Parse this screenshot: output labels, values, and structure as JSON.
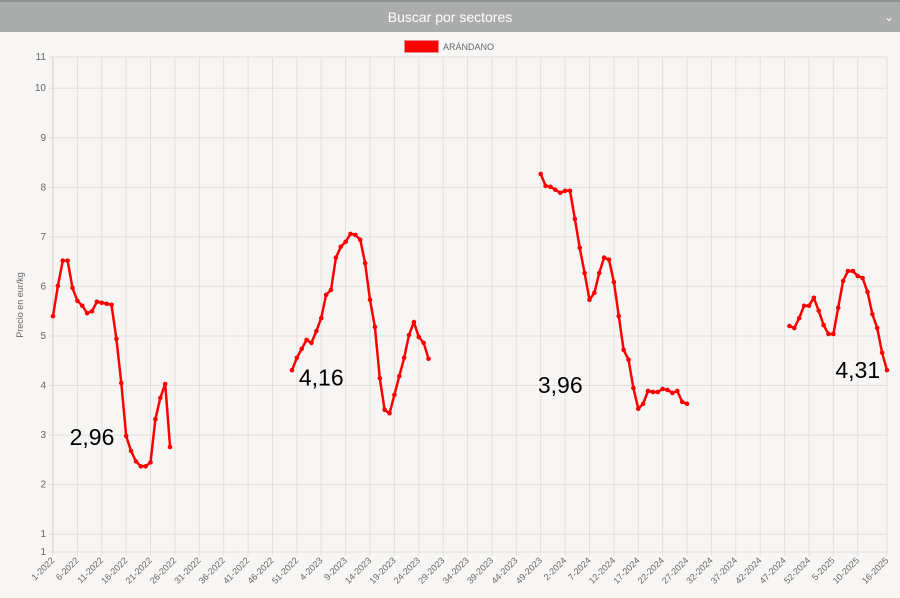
{
  "header": {
    "title": "Buscar por sectores",
    "toggle_icon": "chevron-down-icon"
  },
  "chart_data": {
    "type": "line",
    "title": "",
    "xlabel": "",
    "ylabel": "Precio en eur/kg",
    "ylim": [
      0.64,
      10.63
    ],
    "yticks": [
      0.64,
      1,
      2,
      3,
      4,
      5,
      6,
      7,
      8,
      9,
      10,
      10.63
    ],
    "ytick_labels": [
      "1",
      "1",
      "2",
      "3",
      "4",
      "5",
      "6",
      "7",
      "8",
      "9",
      "10",
      "11"
    ],
    "grid": true,
    "legend_position": "top",
    "colors": {
      "series": "#ff0000",
      "grid": "#e2e0de",
      "text": "#666666"
    },
    "x": [
      "1-2022",
      "2-2022",
      "3-2022",
      "4-2022",
      "5-2022",
      "6-2022",
      "7-2022",
      "8-2022",
      "9-2022",
      "10-2022",
      "11-2022",
      "12-2022",
      "13-2022",
      "14-2022",
      "15-2022",
      "16-2022",
      "17-2022",
      "18-2022",
      "19-2022",
      "20-2022",
      "21-2022",
      "22-2022",
      "23-2022",
      "24-2022",
      "25-2022",
      "26-2022",
      "27-2022",
      "28-2022",
      "29-2022",
      "30-2022",
      "31-2022",
      "32-2022",
      "33-2022",
      "34-2022",
      "35-2022",
      "36-2022",
      "37-2022",
      "38-2022",
      "39-2022",
      "40-2022",
      "41-2022",
      "42-2022",
      "43-2022",
      "44-2022",
      "45-2022",
      "46-2022",
      "47-2022",
      "48-2022",
      "49-2022",
      "50-2022",
      "51-2022",
      "52-2022",
      "1-2023",
      "2-2023",
      "3-2023",
      "4-2023",
      "5-2023",
      "6-2023",
      "7-2023",
      "8-2023",
      "9-2023",
      "10-2023",
      "11-2023",
      "12-2023",
      "13-2023",
      "14-2023",
      "15-2023",
      "16-2023",
      "17-2023",
      "18-2023",
      "19-2023",
      "20-2023",
      "21-2023",
      "22-2023",
      "23-2023",
      "24-2023",
      "25-2023",
      "26-2023",
      "27-2023",
      "28-2023",
      "29-2023",
      "30-2023",
      "31-2023",
      "32-2023",
      "33-2023",
      "34-2023",
      "35-2023",
      "36-2023",
      "37-2023",
      "38-2023",
      "39-2023",
      "40-2023",
      "41-2023",
      "42-2023",
      "43-2023",
      "44-2023",
      "45-2023",
      "46-2023",
      "47-2023",
      "48-2023",
      "49-2023",
      "50-2023",
      "51-2023",
      "52-2023",
      "1-2024",
      "2-2024",
      "3-2024",
      "4-2024",
      "5-2024",
      "6-2024",
      "7-2024",
      "8-2024",
      "9-2024",
      "10-2024",
      "11-2024",
      "12-2024",
      "13-2024",
      "14-2024",
      "15-2024",
      "16-2024",
      "17-2024",
      "18-2024",
      "19-2024",
      "20-2024",
      "21-2024",
      "22-2024",
      "23-2024",
      "24-2024",
      "25-2024",
      "26-2024",
      "27-2024",
      "28-2024",
      "29-2024",
      "30-2024",
      "31-2024",
      "32-2024",
      "33-2024",
      "34-2024",
      "35-2024",
      "36-2024",
      "37-2024",
      "38-2024",
      "39-2024",
      "40-2024",
      "41-2024",
      "42-2024",
      "43-2024",
      "44-2024",
      "45-2024",
      "46-2024",
      "47-2024",
      "48-2024",
      "49-2024",
      "50-2024",
      "51-2024",
      "52-2024",
      "1-2025",
      "2-2025",
      "3-2025",
      "4-2025",
      "5-2025",
      "6-2025",
      "7-2025",
      "8-2025",
      "9-2025",
      "10-2025",
      "11-2025",
      "12-2025",
      "13-2025",
      "14-2025",
      "15-2025",
      "16-2025"
    ],
    "xtick_labels": [
      "1-2022",
      "6-2022",
      "11-2022",
      "16-2022",
      "21-2022",
      "26-2022",
      "31-2022",
      "36-2022",
      "41-2022",
      "46-2022",
      "51-2022",
      "4-2023",
      "9-2023",
      "14-2023",
      "19-2023",
      "24-2023",
      "29-2023",
      "34-2023",
      "39-2023",
      "44-2023",
      "49-2023",
      "2-2024",
      "7-2024",
      "12-2024",
      "17-2024",
      "22-2024",
      "27-2024",
      "32-2024",
      "37-2024",
      "42-2024",
      "47-2024",
      "52-2024",
      "5-2025",
      "10-2025",
      "16-2025"
    ],
    "series": [
      {
        "name": "ARÁNDANO",
        "values": [
          5.4,
          6.01,
          6.52,
          6.52,
          5.97,
          5.71,
          5.61,
          5.46,
          5.5,
          5.69,
          5.67,
          5.65,
          5.63,
          4.94,
          4.05,
          2.98,
          2.68,
          2.47,
          2.37,
          2.37,
          2.45,
          3.32,
          3.75,
          4.03,
          2.76,
          null,
          null,
          null,
          null,
          null,
          null,
          null,
          null,
          null,
          null,
          null,
          null,
          null,
          null,
          null,
          null,
          null,
          null,
          null,
          null,
          null,
          null,
          null,
          null,
          4.31,
          4.56,
          4.74,
          4.92,
          4.86,
          5.1,
          5.36,
          5.83,
          5.93,
          6.58,
          6.8,
          6.9,
          7.06,
          7.04,
          6.94,
          6.47,
          5.73,
          5.18,
          4.15,
          3.51,
          3.44,
          3.81,
          4.19,
          4.56,
          5.02,
          5.28,
          4.98,
          4.86,
          4.54,
          null,
          null,
          null,
          null,
          null,
          null,
          null,
          null,
          null,
          null,
          null,
          null,
          null,
          null,
          null,
          null,
          null,
          null,
          null,
          null,
          null,
          null,
          8.27,
          8.03,
          8.01,
          7.95,
          7.89,
          7.93,
          7.93,
          7.36,
          6.78,
          6.27,
          5.73,
          5.87,
          6.27,
          6.58,
          6.54,
          6.09,
          5.4,
          4.72,
          4.52,
          3.95,
          3.53,
          3.63,
          3.89,
          3.87,
          3.87,
          3.93,
          3.91,
          3.85,
          3.89,
          3.67,
          3.63,
          null,
          null,
          null,
          null,
          null,
          null,
          null,
          null,
          null,
          null,
          null,
          null,
          null,
          null,
          null,
          null,
          null,
          null,
          null,
          null,
          5.2,
          5.16,
          5.36,
          5.61,
          5.61,
          5.77,
          5.51,
          5.22,
          5.04,
          5.04,
          5.57,
          6.11,
          6.31,
          6.31,
          6.21,
          6.17,
          5.89,
          5.44,
          5.16,
          4.66,
          4.31
        ]
      }
    ],
    "annotations": [
      {
        "text": "2,96",
        "x": "9-2022",
        "y": 2.8
      },
      {
        "text": "4,16",
        "x": "4-2023",
        "y": 4.0
      },
      {
        "text": "3,96",
        "x": "1-2024",
        "y": 3.85
      },
      {
        "text": "4,31",
        "x": "10-2025",
        "y": 4.15
      }
    ]
  }
}
